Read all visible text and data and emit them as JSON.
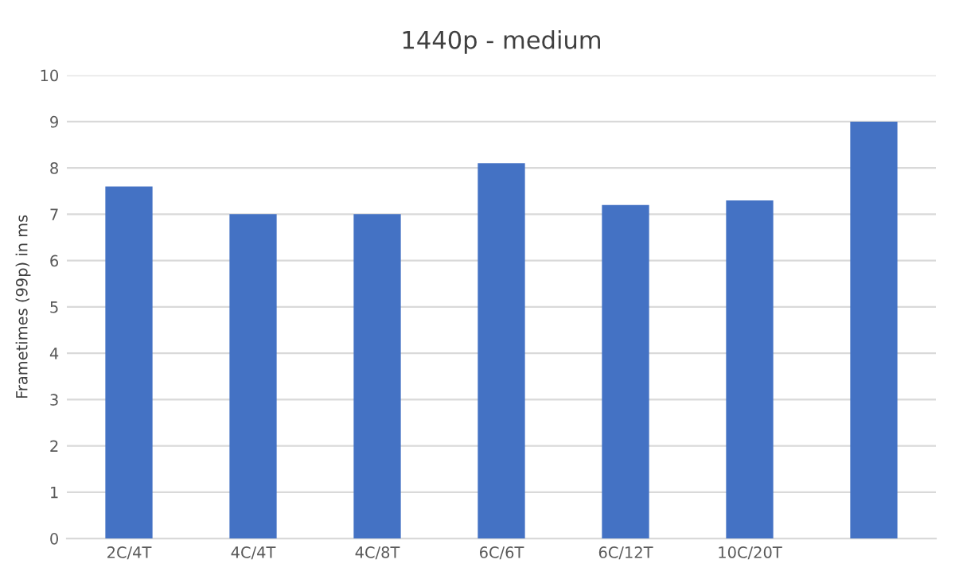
{
  "chart_data": {
    "type": "bar",
    "title": "1440p - medium",
    "ylabel": "Frametimes (99p) in ms",
    "categories": [
      "2C/4T",
      "4C/4T",
      "4C/8T",
      "6C/6T",
      "6C/12T",
      "10C/20T",
      null
    ],
    "values": [
      7.6,
      7.0,
      7.0,
      8.1,
      7.2,
      7.3,
      9.0
    ],
    "color": "#4472c4",
    "ylim": [
      0,
      10
    ],
    "yticks": [
      0,
      1,
      2,
      3,
      4,
      5,
      6,
      7,
      8,
      9,
      10
    ],
    "grid": "y"
  }
}
